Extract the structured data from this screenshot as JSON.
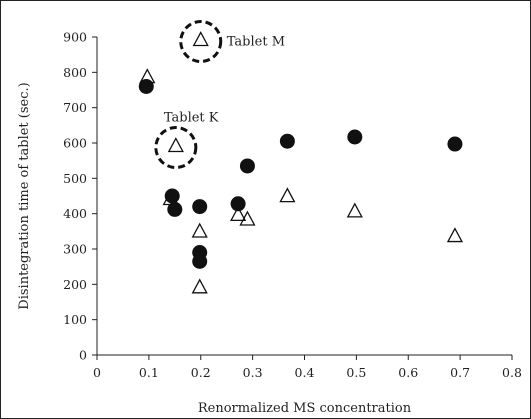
{
  "chart_data": {
    "type": "scatter",
    "xlabel": "Renormalized MS concentration",
    "ylabel": "Disintegration time of tablet (sec.)",
    "xlim": [
      0,
      0.8
    ],
    "ylim": [
      0,
      900
    ],
    "x_ticks": [
      "0",
      "0.1",
      "0.2",
      "0.3",
      "0.4",
      "0.5",
      "0.6",
      "0.7",
      "0.8"
    ],
    "y_ticks": [
      "0",
      "100",
      "200",
      "300",
      "400",
      "500",
      "600",
      "700",
      "800",
      "900"
    ],
    "grid": false,
    "colors": {
      "filled": "#111111",
      "open": "#111111",
      "axis": "#231f20"
    },
    "series": [
      {
        "marker": "filled-circle",
        "points": [
          {
            "x": 0.095,
            "y": 760
          },
          {
            "x": 0.145,
            "y": 450
          },
          {
            "x": 0.15,
            "y": 412
          },
          {
            "x": 0.198,
            "y": 420
          },
          {
            "x": 0.198,
            "y": 290
          },
          {
            "x": 0.198,
            "y": 265
          },
          {
            "x": 0.272,
            "y": 428
          },
          {
            "x": 0.29,
            "y": 535
          },
          {
            "x": 0.367,
            "y": 605
          },
          {
            "x": 0.497,
            "y": 617
          },
          {
            "x": 0.69,
            "y": 597
          }
        ]
      },
      {
        "marker": "open-triangle",
        "points": [
          {
            "x": 0.097,
            "y": 785
          },
          {
            "x": 0.142,
            "y": 440
          },
          {
            "x": 0.152,
            "y": 590
          },
          {
            "x": 0.2,
            "y": 890
          },
          {
            "x": 0.198,
            "y": 348
          },
          {
            "x": 0.198,
            "y": 190
          },
          {
            "x": 0.272,
            "y": 395
          },
          {
            "x": 0.29,
            "y": 382
          },
          {
            "x": 0.367,
            "y": 448
          },
          {
            "x": 0.497,
            "y": 405
          },
          {
            "x": 0.69,
            "y": 335
          }
        ]
      }
    ],
    "annotations": [
      {
        "label": "Tablet M",
        "x": 0.2,
        "y": 890
      },
      {
        "label": "Tablet K",
        "x": 0.152,
        "y": 590
      }
    ]
  }
}
